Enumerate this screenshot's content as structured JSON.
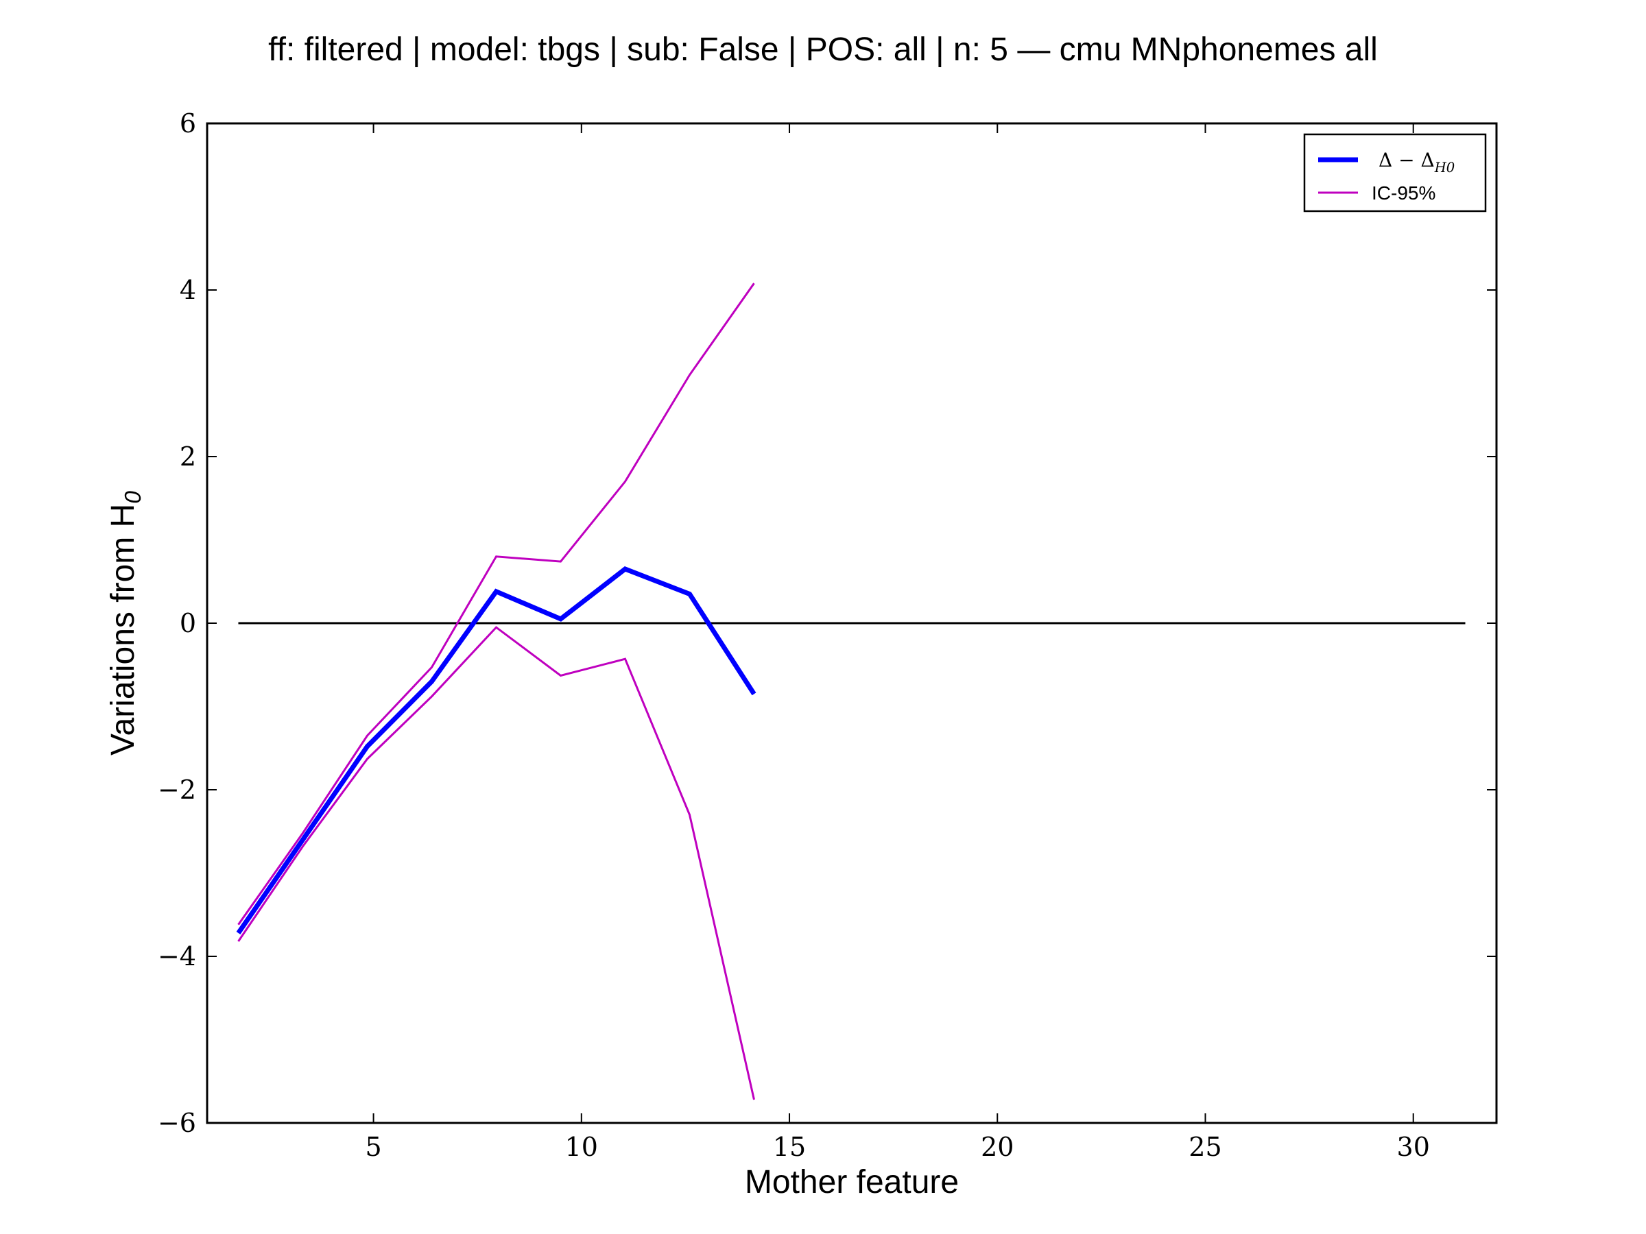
{
  "chart_data": {
    "type": "line",
    "title": "ff: filtered | model: tbgs | sub: False | POS: all | n: 5 — cmu MNphonemes all",
    "xlabel": "Mother feature",
    "ylabel": "Variations from H0",
    "xlim": [
      1,
      32
    ],
    "ylim": [
      -6,
      6
    ],
    "x_ticks": [
      5,
      10,
      15,
      20,
      25,
      30
    ],
    "x_tick_labels": [
      "5",
      "10",
      "15",
      "20",
      "25",
      "30"
    ],
    "y_ticks": [
      -6,
      -4,
      -2,
      0,
      2,
      4,
      6
    ],
    "y_tick_labels": [
      "−6",
      "−4",
      "−2",
      "0",
      "2",
      "4",
      "6"
    ],
    "grid": false,
    "legend_position": "top-right",
    "reference_line": {
      "y": 0,
      "x_range": [
        1.75,
        31.25
      ],
      "color": "#000000"
    },
    "series": [
      {
        "name": "Δ − ΔH0",
        "role": "mean",
        "color": "#0000ff",
        "x": [
          1.75,
          3.3,
          4.85,
          6.4,
          7.95,
          9.5,
          11.05,
          12.6,
          14.15
        ],
        "values": [
          -3.72,
          -2.6,
          -1.48,
          -0.7,
          0.38,
          0.05,
          0.65,
          0.35,
          -0.85
        ]
      },
      {
        "name": "IC-95%",
        "role": "upper",
        "color": "#bf00bf",
        "x": [
          1.75,
          3.3,
          4.85,
          6.4,
          7.95,
          9.5,
          11.05,
          12.6,
          14.15
        ],
        "values": [
          -3.62,
          -2.52,
          -1.35,
          -0.53,
          0.8,
          0.74,
          1.7,
          2.98,
          4.08
        ]
      },
      {
        "name": "",
        "role": "lower",
        "color": "#bf00bf",
        "x": [
          1.75,
          3.3,
          4.85,
          6.4,
          7.95,
          9.5,
          11.05,
          12.6,
          14.15
        ],
        "values": [
          -3.82,
          -2.68,
          -1.63,
          -0.88,
          -0.05,
          -0.63,
          -0.43,
          -2.3,
          -5.72
        ]
      }
    ],
    "legend": {
      "entries": [
        {
          "label_main": "Δ − Δ",
          "label_sub": "H0",
          "color": "#0000ff"
        },
        {
          "label_main": "IC-95%",
          "label_sub": "",
          "color": "#bf00bf"
        }
      ]
    }
  }
}
